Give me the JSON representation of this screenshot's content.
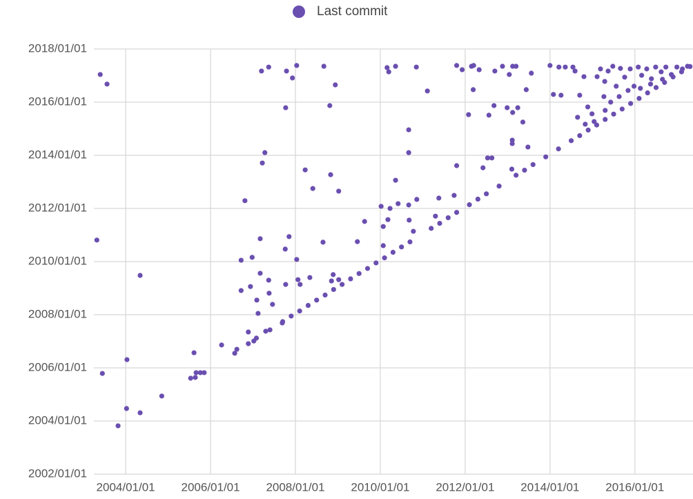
{
  "chart_data": {
    "type": "scatter",
    "color": "#6a4fb0",
    "grid": true,
    "legend": "top",
    "xlim": [
      2003.25,
      2017.37
    ],
    "ylim": [
      2002,
      2018
    ],
    "xticks": [
      {
        "value": 2004,
        "label": "2004/01/01"
      },
      {
        "value": 2006,
        "label": "2006/01/01"
      },
      {
        "value": 2008,
        "label": "2008/01/01"
      },
      {
        "value": 2010,
        "label": "2010/01/01"
      },
      {
        "value": 2012,
        "label": "2012/01/01"
      },
      {
        "value": 2014,
        "label": "2014/01/01"
      },
      {
        "value": 2016,
        "label": "2016/01/01"
      }
    ],
    "yticks": [
      {
        "value": 2002,
        "label": "2002/01/01"
      },
      {
        "value": 2004,
        "label": "2004/01/01"
      },
      {
        "value": 2006,
        "label": "2006/01/01"
      },
      {
        "value": 2008,
        "label": "2008/01/01"
      },
      {
        "value": 2010,
        "label": "2010/01/01"
      },
      {
        "value": 2012,
        "label": "2012/01/01"
      },
      {
        "value": 2014,
        "label": "2014/01/01"
      },
      {
        "value": 2016,
        "label": "2016/01/01"
      },
      {
        "value": 2018,
        "label": "2018/01/01"
      }
    ],
    "series": [
      {
        "name": "Last commit",
        "color": "#6a4fb0",
        "x": [
          2003.32,
          2003.4,
          2003.56,
          2003.45,
          2004.03,
          2004.02,
          2003.82,
          2004.34,
          2004.34,
          2004.85,
          2005.53,
          2005.61,
          2005.66,
          2005.76,
          2005.85,
          2005.64,
          2006.26,
          2006.57,
          2006.62,
          2006.72,
          2006.81,
          2006.98,
          2006.72,
          2006.89,
          2006.89,
          2007.02,
          2007.08,
          2007.2,
          2007.37,
          2007.28,
          2007.22,
          2007.17,
          2006.94,
          2007.09,
          2007.17,
          2007.12,
          2007.37,
          2007.3,
          2007.38,
          2007.46,
          2007.4,
          2007.69,
          2007.79,
          2007.77,
          2007.93,
          2008.03,
          2007.85,
          2007.76,
          2008.03,
          2007.77,
          2008.11,
          2008.06,
          2008.23,
          2008.41,
          2008.67,
          2008.81,
          2008.94,
          2008.83,
          2009.02,
          2008.65,
          2008.34,
          2008.89,
          2008.85,
          2009.02,
          2009.46,
          2009.63,
          2010.02,
          2010.07,
          2010.07,
          2010.23,
          2010.18,
          2010.36,
          2010.42,
          2010.67,
          2010.68,
          2010.67,
          2010.67,
          2010.86,
          2010.78,
          2010.16,
          2010.2,
          2010.36,
          2010.85,
          2011.11,
          2011.38,
          2011.3,
          2011.74,
          2011.8,
          2011.8,
          2011.93,
          2012.08,
          2012.19,
          2012.15,
          2012.2,
          2012.33,
          2012.42,
          2012.53,
          2012.63,
          2012.56,
          2012.68,
          2012.7,
          2012.88,
          2012.99,
          2013.04,
          2013.12,
          2013.2,
          2013.24,
          2013.1,
          2013.11,
          2013.11,
          2013.36,
          2013.44,
          2013.48,
          2013.56,
          2013.12,
          2014.0,
          2014.08,
          2014.26,
          2014.21,
          2014.36,
          2014.54,
          2014.59,
          2014.7,
          2014.8,
          2014.89,
          2014.99,
          2014.65,
          2014.83,
          2015.04,
          2015.11,
          2015.19,
          2015.29,
          2015.37,
          2015.48,
          2015.56,
          2015.66,
          2015.76,
          2015.89,
          2015.98,
          2016.08,
          2016.16,
          2016.28,
          2016.39,
          2016.49,
          2016.62,
          2016.73,
          2016.86,
          2016.99,
          2017.12,
          2017.24,
          2015.27,
          2015.43,
          2015.63,
          2015.84,
          2016.13,
          2016.37,
          2016.65,
          2015.3,
          2007.7,
          2007.9,
          2008.1,
          2008.3,
          2008.5,
          2008.7,
          2008.9,
          2009.1,
          2009.3,
          2009.5,
          2009.7,
          2009.9,
          2010.1,
          2010.3,
          2010.5,
          2010.7,
          2011.2,
          2011.4,
          2011.6,
          2011.8,
          2012.1,
          2012.3,
          2012.5,
          2012.8,
          2013.2,
          2013.4,
          2013.6,
          2013.9,
          2014.2,
          2014.5,
          2014.7,
          2014.9,
          2015.1,
          2015.3,
          2015.5,
          2015.7,
          2015.9,
          2016.1,
          2016.3,
          2016.5,
          2016.7,
          2016.9,
          2017.1,
          2017.3
        ],
        "values": [
          2010.81,
          2017.04,
          2016.68,
          2005.79,
          2006.31,
          2004.47,
          2003.82,
          2004.31,
          2009.48,
          2004.94,
          2005.61,
          2006.57,
          2005.82,
          2005.82,
          2005.82,
          2005.64,
          2006.86,
          2006.55,
          2006.7,
          2010.05,
          2012.29,
          2010.16,
          2008.91,
          2007.35,
          2006.91,
          2007.01,
          2007.12,
          2017.17,
          2017.32,
          2014.1,
          2013.71,
          2010.86,
          2009.06,
          2008.55,
          2009.56,
          2008.05,
          2009.3,
          2007.38,
          2008.81,
          2008.39,
          2007.43,
          2007.69,
          2017.17,
          2015.79,
          2016.91,
          2017.38,
          2010.94,
          2010.47,
          2010.08,
          2009.14,
          2009.14,
          2009.32,
          2013.45,
          2012.75,
          2017.35,
          2015.87,
          2016.65,
          2013.27,
          2012.65,
          2010.73,
          2009.4,
          2009.51,
          2009.27,
          2009.32,
          2010.75,
          2011.51,
          2012.08,
          2011.32,
          2010.6,
          2012.0,
          2011.58,
          2013.06,
          2012.18,
          2012.13,
          2011.56,
          2014.96,
          2014.1,
          2012.34,
          2011.14,
          2017.3,
          2017.14,
          2017.35,
          2017.32,
          2016.42,
          2012.39,
          2011.71,
          2012.49,
          2013.61,
          2017.38,
          2017.22,
          2015.53,
          2016.47,
          2017.35,
          2017.38,
          2017.22,
          2013.53,
          2013.9,
          2013.9,
          2015.51,
          2015.87,
          2017.17,
          2017.35,
          2015.79,
          2017.04,
          2017.35,
          2017.35,
          2015.79,
          2013.48,
          2014.57,
          2014.44,
          2015.25,
          2016.47,
          2014.31,
          2017.09,
          2015.61,
          2017.38,
          2016.29,
          2016.26,
          2017.32,
          2017.32,
          2017.32,
          2017.17,
          2016.26,
          2016.96,
          2015.82,
          2015.56,
          2015.43,
          2015.17,
          2015.27,
          2016.96,
          2017.25,
          2016.78,
          2017.17,
          2017.35,
          2016.6,
          2017.27,
          2016.94,
          2017.25,
          2016.6,
          2017.32,
          2017.01,
          2017.25,
          2016.88,
          2017.32,
          2017.14,
          2017.32,
          2017.04,
          2017.32,
          2017.25,
          2017.35,
          2016.21,
          2016.0,
          2016.21,
          2016.44,
          2016.52,
          2016.68,
          2016.86,
          2015.69,
          2007.74,
          2007.95,
          2008.14,
          2008.35,
          2008.55,
          2008.74,
          2008.95,
          2009.14,
          2009.35,
          2009.55,
          2009.74,
          2009.95,
          2010.14,
          2010.35,
          2010.55,
          2010.74,
          2011.25,
          2011.44,
          2011.65,
          2011.85,
          2012.14,
          2012.35,
          2012.55,
          2012.84,
          2013.25,
          2013.44,
          2013.65,
          2013.94,
          2014.24,
          2014.55,
          2014.74,
          2014.95,
          2015.14,
          2015.35,
          2015.55,
          2015.74,
          2015.95,
          2016.14,
          2016.35,
          2016.55,
          2016.74,
          2016.95,
          2017.14,
          2017.34
        ]
      }
    ]
  }
}
